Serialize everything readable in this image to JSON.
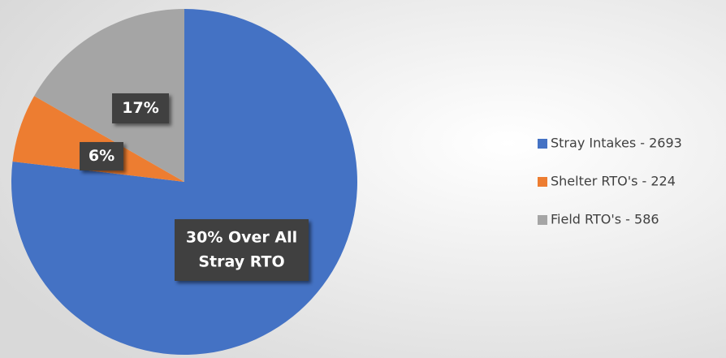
{
  "chart_data": {
    "type": "pie",
    "categories": [
      "Stray Intakes - 2693",
      "Shelter RTO's - 224",
      "Field RTO's - 586"
    ],
    "values": [
      2693,
      224,
      586
    ],
    "colors": [
      "#4472c4",
      "#ed7d31",
      "#a5a5a5"
    ],
    "annotations": [
      [
        "30% Over All",
        "Stray RTO"
      ],
      [
        "6%"
      ],
      [
        "17%"
      ]
    ],
    "legend": "right"
  }
}
